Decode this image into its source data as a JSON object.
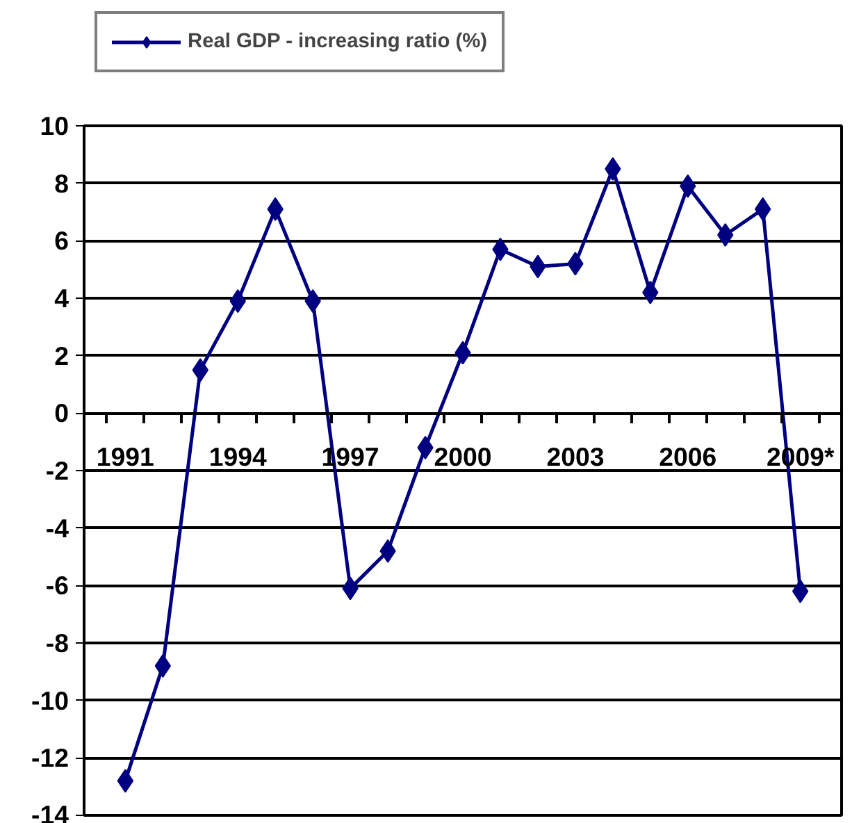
{
  "chart_data": {
    "type": "line",
    "categories": [
      "1991",
      null,
      null,
      "1994",
      null,
      null,
      "1997",
      null,
      null,
      "2000",
      null,
      null,
      "2003",
      null,
      null,
      "2006",
      null,
      null,
      "2009*"
    ],
    "series": [
      {
        "name": "Real GDP - increasing ratio (%)",
        "color": "#000080",
        "values": [
          -12.8,
          -8.8,
          1.5,
          3.9,
          7.1,
          3.9,
          -6.1,
          -4.8,
          -1.2,
          2.1,
          5.7,
          5.1,
          5.2,
          8.5,
          4.2,
          7.9,
          6.2,
          7.1,
          -6.2
        ]
      }
    ],
    "ylim": [
      -14,
      10
    ],
    "yticks": [
      -14,
      -12,
      -10,
      -8,
      -6,
      -4,
      -2,
      0,
      2,
      4,
      6,
      8,
      10
    ],
    "grid": "y",
    "legend": "top left",
    "marker": "diamond",
    "line_style": "solid"
  }
}
